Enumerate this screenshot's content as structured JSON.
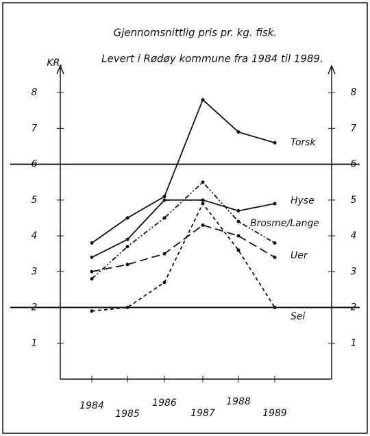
{
  "chart_data": {
    "type": "line",
    "title": "Gjennomsnittlig pris pr. kg. fisk.",
    "subtitle": "Levert i Rødøy kommune fra 1984 til 1989.",
    "y_label": "KR.",
    "categories": [
      "1984",
      "1985",
      "1986",
      "1987",
      "1988",
      "1989"
    ],
    "series": [
      {
        "name": "Torsk",
        "color": "#111111",
        "dash": "solid",
        "values": [
          3.8,
          4.5,
          5.1,
          7.8,
          6.9,
          6.6
        ]
      },
      {
        "name": "Hyse",
        "color": "#111111",
        "dash": "solid",
        "values": [
          3.4,
          3.9,
          5.0,
          5.0,
          4.7,
          4.9
        ]
      },
      {
        "name": "Brosme/Lange",
        "color": "#111111",
        "dash": "dashdot",
        "values": [
          2.8,
          3.7,
          4.5,
          5.5,
          4.4,
          3.8
        ]
      },
      {
        "name": "Uer",
        "color": "#111111",
        "dash": "longdash",
        "values": [
          3.0,
          3.2,
          3.5,
          4.3,
          4.0,
          3.4
        ]
      },
      {
        "name": "Sei",
        "color": "#111111",
        "dash": "dash",
        "values": [
          1.9,
          2.0,
          2.7,
          4.9,
          3.6,
          2.0
        ]
      }
    ],
    "ylim": [
      0,
      8.5
    ],
    "yticks": [
      1,
      2,
      3,
      4,
      5,
      6,
      7,
      8
    ],
    "reference_lines": [
      6,
      2
    ]
  }
}
